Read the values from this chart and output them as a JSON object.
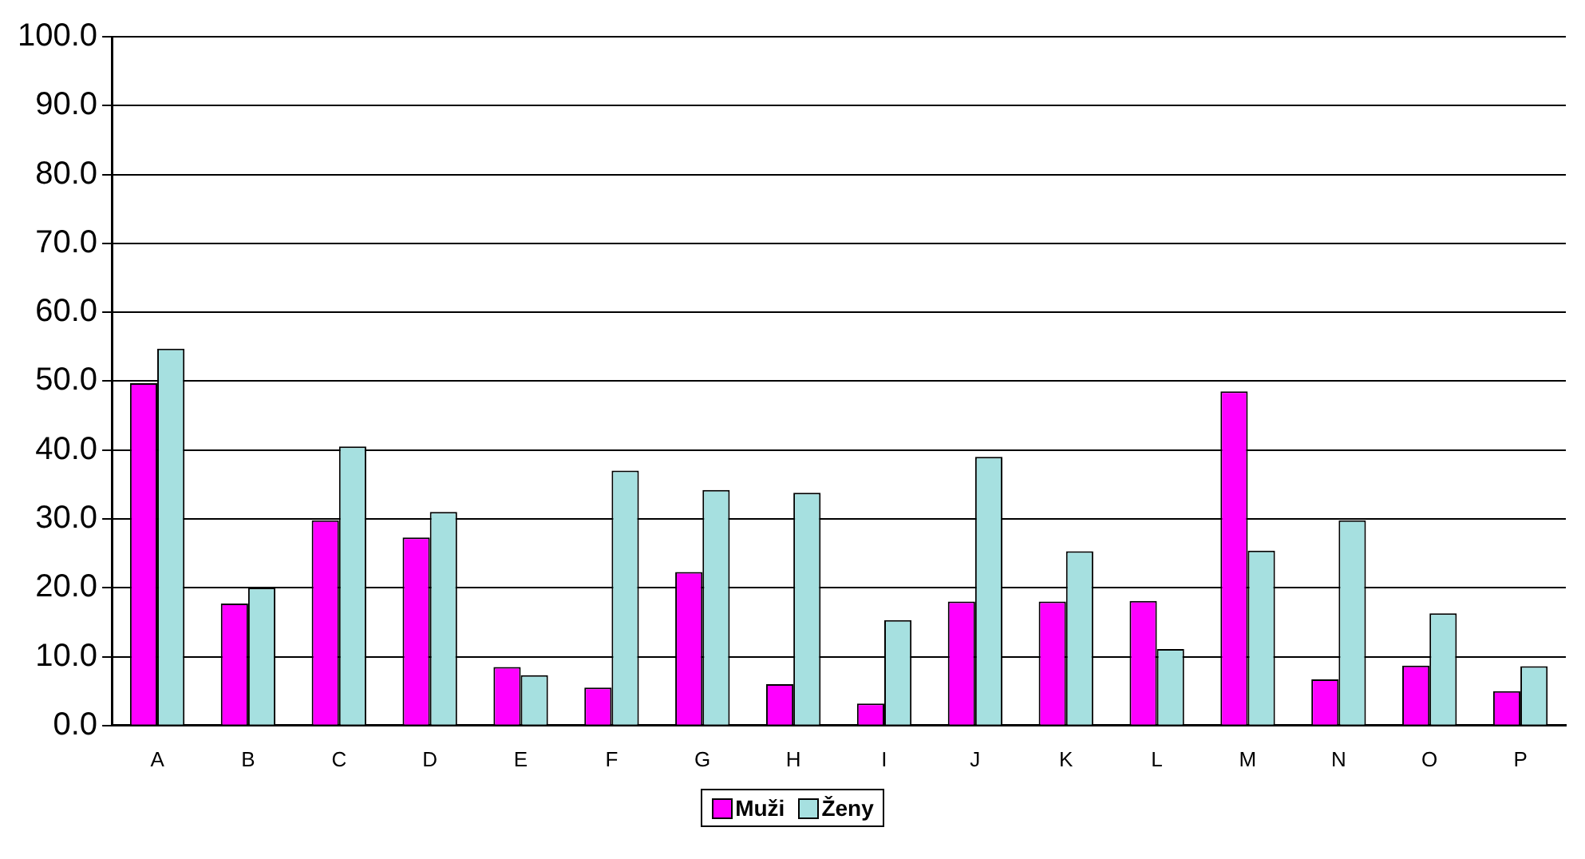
{
  "chart_data": {
    "type": "bar",
    "categories": [
      "A",
      "B",
      "C",
      "D",
      "E",
      "F",
      "G",
      "H",
      "I",
      "J",
      "K",
      "L",
      "M",
      "N",
      "O",
      "P"
    ],
    "series": [
      {
        "name": "Muži",
        "color": "#ff00ff",
        "values": [
          49.7,
          17.7,
          29.8,
          27.3,
          8.5,
          5.5,
          22.3,
          6.0,
          3.2,
          18.0,
          18.0,
          18.1,
          48.5,
          6.7,
          8.7,
          5.0
        ]
      },
      {
        "name": "Ženy",
        "color": "#a6e0e0",
        "values": [
          54.7,
          20.0,
          40.5,
          31.0,
          7.3,
          37.0,
          34.2,
          33.8,
          15.3,
          39.0,
          25.3,
          11.1,
          25.4,
          29.8,
          16.3,
          8.6
        ]
      }
    ],
    "ylim": [
      0,
      100
    ],
    "yticks": [
      {
        "value": 0,
        "label": "0.0"
      },
      {
        "value": 10,
        "label": "10.0"
      },
      {
        "value": 20,
        "label": "20.0"
      },
      {
        "value": 30,
        "label": "30.0"
      },
      {
        "value": 40,
        "label": "40.0"
      },
      {
        "value": 50,
        "label": "50.0"
      },
      {
        "value": 60,
        "label": "60.0"
      },
      {
        "value": 70,
        "label": "70.0"
      },
      {
        "value": 80,
        "label": "80.0"
      },
      {
        "value": 90,
        "label": "90.0"
      },
      {
        "value": 100,
        "label": "100.0"
      }
    ],
    "grid": "y",
    "legend": "bottom"
  }
}
